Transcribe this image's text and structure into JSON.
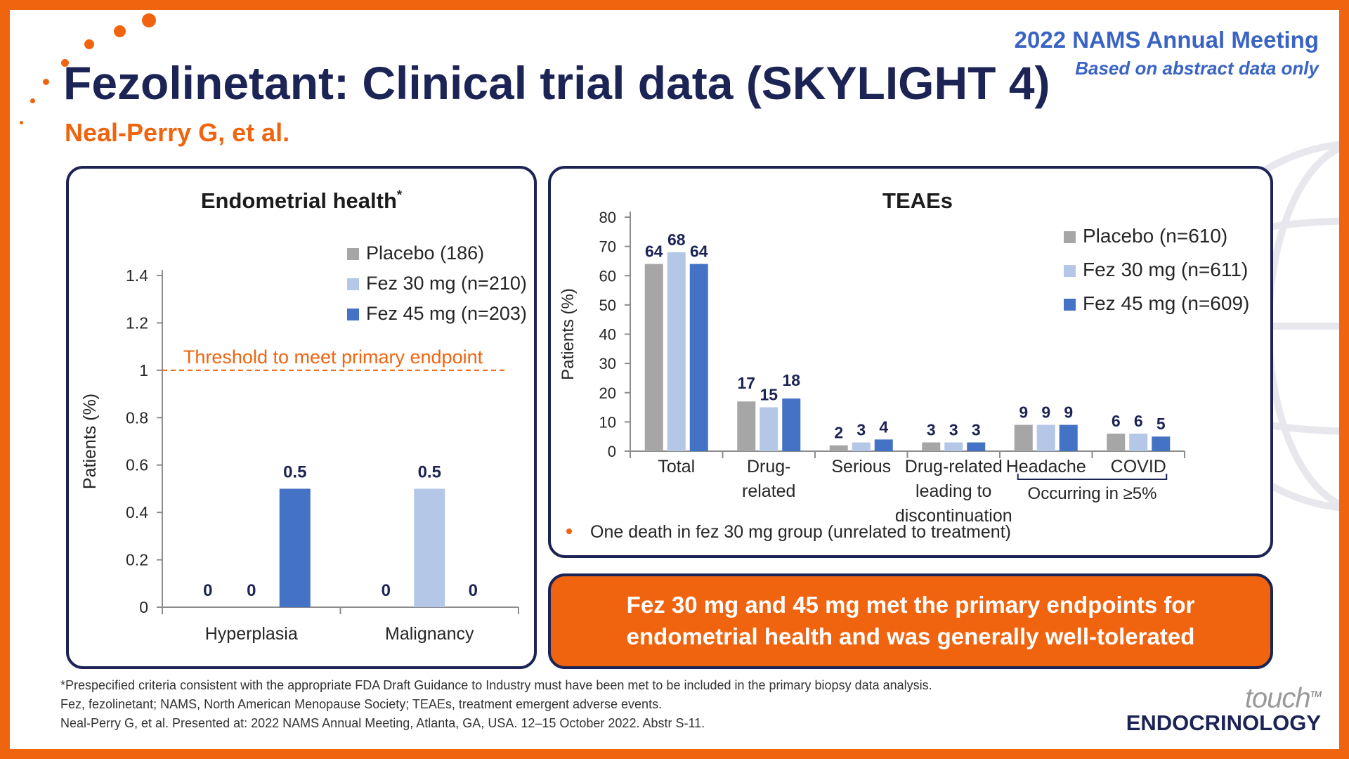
{
  "meeting": {
    "line1": "2022 NAMS Annual Meeting",
    "line2": "Based on abstract data only"
  },
  "slide": {
    "title": "Fezolinetant: Clinical trial data (SKYLIGHT 4)",
    "author": "Neal-Perry G, et al."
  },
  "colors": {
    "placebo": "#a6a6a6",
    "fez30": "#b4c7e7",
    "fez45": "#4472c4",
    "navy": "#1c2355",
    "orange": "#f0640f"
  },
  "chart_data": [
    {
      "type": "bar",
      "title": "Endometrial health",
      "title_marker": "*",
      "ylabel": "Patients (%)",
      "ylim": [
        0,
        1.4
      ],
      "yticks": [
        0,
        0.2,
        0.4,
        0.6,
        0.8,
        1,
        1.2,
        1.4
      ],
      "categories": [
        "Hyperplasia",
        "Malignancy"
      ],
      "series": [
        {
          "name": "Placebo (186)",
          "values": [
            0,
            0
          ]
        },
        {
          "name": "Fez 30 mg (n=210)",
          "values": [
            0,
            0.5
          ]
        },
        {
          "name": "Fez 45 mg (n=203)",
          "values": [
            0.5,
            0
          ]
        }
      ],
      "threshold": {
        "value": 1,
        "label": "Threshold to meet primary endpoint"
      },
      "legend": "top-right",
      "grid": false
    },
    {
      "type": "bar",
      "title": "TEAEs",
      "ylabel": "Patients (%)",
      "ylim": [
        0,
        80
      ],
      "yticks": [
        0,
        10,
        20,
        30,
        40,
        50,
        60,
        70,
        80
      ],
      "categories": [
        [
          "Total"
        ],
        [
          "Drug-",
          "related"
        ],
        [
          "Serious"
        ],
        [
          "Drug-related",
          "leading to",
          "discontinuation"
        ],
        [
          "Headache"
        ],
        [
          "COVID"
        ]
      ],
      "series": [
        {
          "name": "Placebo (n=610)",
          "values": [
            64,
            17,
            2,
            3,
            9,
            6
          ]
        },
        {
          "name": "Fez 30 mg (n=611)",
          "values": [
            68,
            15,
            3,
            3,
            9,
            6
          ]
        },
        {
          "name": "Fez 45 mg (n=609)",
          "values": [
            64,
            18,
            4,
            3,
            9,
            5
          ]
        }
      ],
      "group_label": "Occurring in ≥5%",
      "note": "One death in fez 30 mg group (unrelated to treatment)",
      "legend": "top-right",
      "grid": false
    }
  ],
  "callout": "Fez 30 mg and 45 mg met the primary endpoints for\nendometrial health and was generally well-tolerated",
  "footnotes": [
    "*Prespecified criteria consistent with the appropriate FDA Draft Guidance to Industry must have been met to be included in the primary biopsy data analysis.",
    "Fez, fezolinetant; NAMS, North American Menopause Society; TEAEs, treatment emergent adverse events.",
    "Neal-Perry G, et al. Presented at: 2022 NAMS Annual Meeting, Atlanta, GA, USA. 12–15 October 2022. Abstr S-11."
  ],
  "logo": {
    "brand": "touch",
    "tm": "TM",
    "division": "ENDOCRINOLOGY"
  }
}
